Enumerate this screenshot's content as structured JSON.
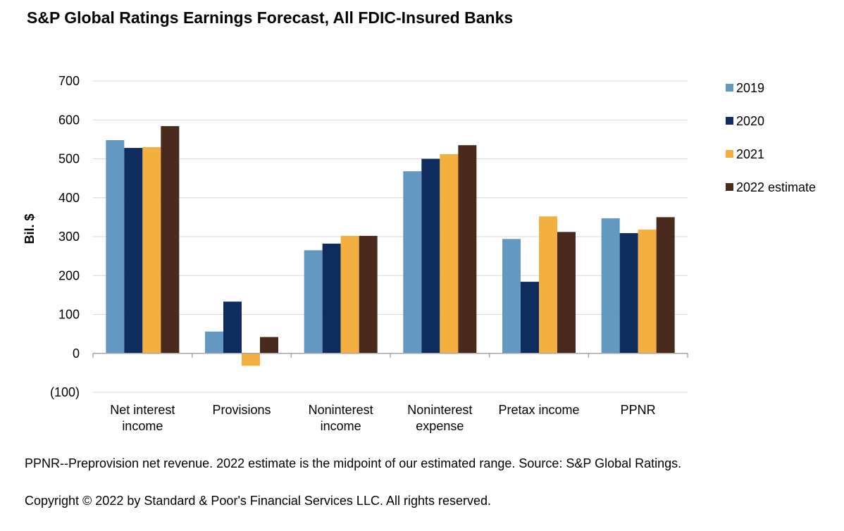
{
  "title": "S&P Global Ratings Earnings Forecast, All FDIC-Insured Banks",
  "footnote": "PPNR--Preprovision net revenue. 2022 estimate is the midpoint of our estimated range. Source: S&P Global Ratings.",
  "copyright": "Copyright © 2022 by Standard & Poor's Financial Services LLC. All rights reserved.",
  "chart_data": {
    "type": "bar",
    "title": "S&P Global Ratings Earnings Forecast, All FDIC-Insured Banks",
    "ylabel": "Bil. $",
    "xlabel": "",
    "ylim": [
      -100,
      700
    ],
    "yticks": [
      700,
      600,
      500,
      400,
      300,
      200,
      100,
      0,
      -100
    ],
    "ytick_labels": [
      "700",
      "600",
      "500",
      "400",
      "300",
      "200",
      "100",
      "0",
      "(100)"
    ],
    "grid": true,
    "legend_position": "right",
    "categories": [
      [
        "Net interest",
        "income"
      ],
      [
        "Provisions"
      ],
      [
        "Noninterest",
        "income"
      ],
      [
        "Noninterest",
        "expense"
      ],
      [
        "Pretax income"
      ],
      [
        "PPNR"
      ]
    ],
    "series": [
      {
        "name": "2019",
        "color": "#6399C1",
        "values": [
          548,
          56,
          265,
          468,
          294,
          347
        ]
      },
      {
        "name": "2020",
        "color": "#0E2C5E",
        "values": [
          528,
          133,
          282,
          500,
          184,
          309
        ]
      },
      {
        "name": "2021",
        "color": "#F4AF41",
        "values": [
          530,
          -32,
          302,
          512,
          352,
          318
        ]
      },
      {
        "name": "2022 estimate",
        "color": "#4A2A1C",
        "values": [
          584,
          42,
          302,
          535,
          312,
          350
        ]
      }
    ]
  }
}
